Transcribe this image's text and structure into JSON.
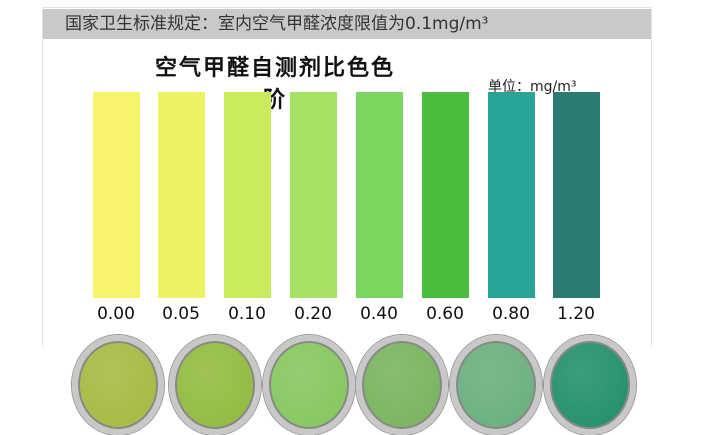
{
  "notice": "国家卫生标准规定：室内空气甲醛浓度限值为0.1mg/m³",
  "title": "空气甲醛自测剂比色色阶",
  "unit": "单位：mg/m³",
  "scale": [
    {
      "value": "0.00",
      "color": "#f6f46c"
    },
    {
      "value": "0.05",
      "color": "#ebf263"
    },
    {
      "value": "0.10",
      "color": "#c9ec5c"
    },
    {
      "value": "0.20",
      "color": "#a6e262"
    },
    {
      "value": "0.40",
      "color": "#7bd660"
    },
    {
      "value": "0.60",
      "color": "#4bbd3e"
    },
    {
      "value": "0.80",
      "color": "#28a596"
    },
    {
      "value": "1.20",
      "color": "#2a7c72"
    }
  ],
  "samples": [
    {
      "color": "#a6b83f"
    },
    {
      "color": "#90ba3c"
    },
    {
      "color": "#84c65c"
    },
    {
      "color": "#76b35c"
    },
    {
      "color": "#68ae7c"
    },
    {
      "color": "#1f8e6a"
    }
  ]
}
